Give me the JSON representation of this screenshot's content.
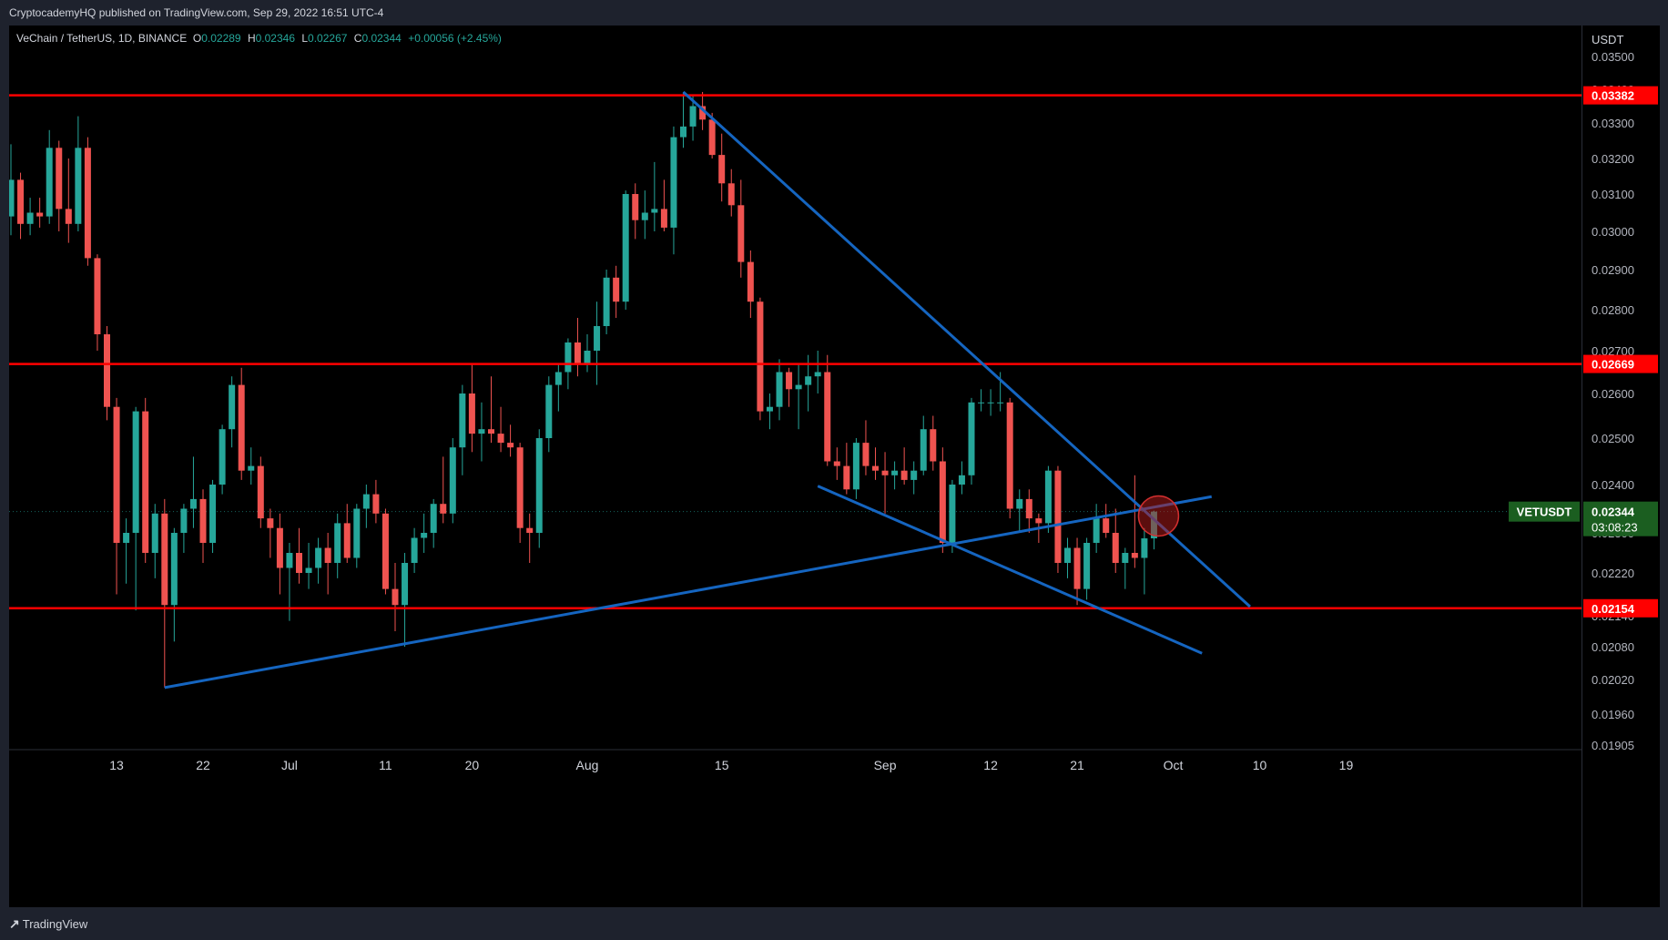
{
  "publisher": "CryptocademyHQ published on TradingView.com, Sep 29, 2022 16:51 UTC-4",
  "brand": "TradingView",
  "brand_icon": "tradingview-logo-icon",
  "symbol": {
    "name": "VeChain / TetherUS, 1D, BINANCE",
    "open_label": "O",
    "open": "0.02289",
    "high_label": "H",
    "high": "0.02346",
    "low_label": "L",
    "low": "0.02267",
    "close_label": "C",
    "close": "0.02344",
    "change": "+0.00056 (+2.45%)"
  },
  "colors": {
    "up": "#26a69a",
    "down": "#ef5350",
    "level": "#ff0000",
    "trend": "#1565c0",
    "highlight": "#b71c1c"
  },
  "chart_data": {
    "type": "candlestick",
    "currency_label": "USDT",
    "y_ticks": [
      "0.03500",
      "0.03400",
      "0.03300",
      "0.03200",
      "0.03100",
      "0.03000",
      "0.02900",
      "0.02800",
      "0.02700",
      "0.02600",
      "0.02500",
      "0.02400",
      "0.02300",
      "0.02220",
      "0.02140",
      "0.02080",
      "0.02020",
      "0.01960",
      "0.01905"
    ],
    "x_ticks": [
      {
        "label": "13",
        "date": "2022-06-13"
      },
      {
        "label": "22",
        "date": "2022-06-22"
      },
      {
        "label": "Jul",
        "date": "2022-07-01"
      },
      {
        "label": "11",
        "date": "2022-07-11"
      },
      {
        "label": "20",
        "date": "2022-07-20"
      },
      {
        "label": "Aug",
        "date": "2022-08-01"
      },
      {
        "label": "15",
        "date": "2022-08-15"
      },
      {
        "label": "Sep",
        "date": "2022-09-01"
      },
      {
        "label": "12",
        "date": "2022-09-12"
      },
      {
        "label": "21",
        "date": "2022-09-21"
      },
      {
        "label": "Oct",
        "date": "2022-10-01"
      },
      {
        "label": "10",
        "date": "2022-10-10"
      },
      {
        "label": "19",
        "date": "2022-10-19"
      }
    ],
    "x_range": [
      "2022-06-02",
      "2022-10-20"
    ],
    "horizontal_levels": [
      {
        "value": 0.03382,
        "label": "0.03382"
      },
      {
        "value": 0.02669,
        "label": "0.02669"
      },
      {
        "value": 0.02154,
        "label": "0.02154"
      }
    ],
    "current_price": {
      "symbol": "VETUSDT",
      "value": 0.02344,
      "label": "0.02344",
      "countdown": "03:08:23"
    },
    "trendlines": [
      {
        "from": {
          "date": "2022-06-18",
          "value": 0.02006
        },
        "to": {
          "date": "2022-10-05",
          "value": 0.02375
        }
      },
      {
        "from": {
          "date": "2022-08-11",
          "value": 0.03392
        },
        "to": {
          "date": "2022-10-09",
          "value": 0.02157
        }
      },
      {
        "from": {
          "date": "2022-08-25",
          "value": 0.02397
        },
        "to": {
          "date": "2022-10-04",
          "value": 0.02068
        }
      }
    ],
    "highlight_circle": {
      "date": "2022-09-29",
      "value": 0.02335
    },
    "candles": [
      {
        "d": "2022-06-02",
        "o": 0.0304,
        "h": 0.0324,
        "l": 0.0299,
        "c": 0.0314
      },
      {
        "d": "2022-06-03",
        "o": 0.0314,
        "h": 0.0316,
        "l": 0.0298,
        "c": 0.0302
      },
      {
        "d": "2022-06-04",
        "o": 0.0302,
        "h": 0.0309,
        "l": 0.0299,
        "c": 0.0305
      },
      {
        "d": "2022-06-05",
        "o": 0.0305,
        "h": 0.0309,
        "l": 0.0301,
        "c": 0.0304
      },
      {
        "d": "2022-06-06",
        "o": 0.0304,
        "h": 0.0328,
        "l": 0.0302,
        "c": 0.0323
      },
      {
        "d": "2022-06-07",
        "o": 0.0323,
        "h": 0.0325,
        "l": 0.03,
        "c": 0.0306
      },
      {
        "d": "2022-06-08",
        "o": 0.0306,
        "h": 0.032,
        "l": 0.0297,
        "c": 0.0302
      },
      {
        "d": "2022-06-09",
        "o": 0.0302,
        "h": 0.0332,
        "l": 0.03,
        "c": 0.0323
      },
      {
        "d": "2022-06-10",
        "o": 0.0323,
        "h": 0.0326,
        "l": 0.0291,
        "c": 0.0293
      },
      {
        "d": "2022-06-11",
        "o": 0.0293,
        "h": 0.0294,
        "l": 0.027,
        "c": 0.0274
      },
      {
        "d": "2022-06-12",
        "o": 0.0274,
        "h": 0.0276,
        "l": 0.0254,
        "c": 0.0257
      },
      {
        "d": "2022-06-13",
        "o": 0.0257,
        "h": 0.0259,
        "l": 0.0218,
        "c": 0.0228
      },
      {
        "d": "2022-06-14",
        "o": 0.0228,
        "h": 0.0233,
        "l": 0.022,
        "c": 0.023
      },
      {
        "d": "2022-06-15",
        "o": 0.023,
        "h": 0.0257,
        "l": 0.0215,
        "c": 0.0256
      },
      {
        "d": "2022-06-16",
        "o": 0.0256,
        "h": 0.0259,
        "l": 0.0224,
        "c": 0.0226
      },
      {
        "d": "2022-06-17",
        "o": 0.0226,
        "h": 0.0236,
        "l": 0.0221,
        "c": 0.0234
      },
      {
        "d": "2022-06-18",
        "o": 0.0234,
        "h": 0.0237,
        "l": 0.02006,
        "c": 0.0216
      },
      {
        "d": "2022-06-19",
        "o": 0.0216,
        "h": 0.0231,
        "l": 0.0209,
        "c": 0.023
      },
      {
        "d": "2022-06-20",
        "o": 0.023,
        "h": 0.0236,
        "l": 0.0226,
        "c": 0.0235
      },
      {
        "d": "2022-06-21",
        "o": 0.0235,
        "h": 0.0246,
        "l": 0.0231,
        "c": 0.0237
      },
      {
        "d": "2022-06-22",
        "o": 0.0237,
        "h": 0.0239,
        "l": 0.0224,
        "c": 0.0228
      },
      {
        "d": "2022-06-23",
        "o": 0.0228,
        "h": 0.0241,
        "l": 0.0226,
        "c": 0.024
      },
      {
        "d": "2022-06-24",
        "o": 0.024,
        "h": 0.0253,
        "l": 0.0238,
        "c": 0.0252
      },
      {
        "d": "2022-06-25",
        "o": 0.0252,
        "h": 0.0264,
        "l": 0.0248,
        "c": 0.0262
      },
      {
        "d": "2022-06-26",
        "o": 0.0262,
        "h": 0.0266,
        "l": 0.0241,
        "c": 0.0243
      },
      {
        "d": "2022-06-27",
        "o": 0.0243,
        "h": 0.0248,
        "l": 0.024,
        "c": 0.0244
      },
      {
        "d": "2022-06-28",
        "o": 0.0244,
        "h": 0.0246,
        "l": 0.0231,
        "c": 0.0233
      },
      {
        "d": "2022-06-29",
        "o": 0.0233,
        "h": 0.0235,
        "l": 0.0225,
        "c": 0.0231
      },
      {
        "d": "2022-06-30",
        "o": 0.0231,
        "h": 0.0234,
        "l": 0.0218,
        "c": 0.0223
      },
      {
        "d": "2022-07-01",
        "o": 0.0223,
        "h": 0.0228,
        "l": 0.0213,
        "c": 0.0226
      },
      {
        "d": "2022-07-02",
        "o": 0.0226,
        "h": 0.0231,
        "l": 0.022,
        "c": 0.0222
      },
      {
        "d": "2022-07-03",
        "o": 0.0222,
        "h": 0.0228,
        "l": 0.0219,
        "c": 0.0223
      },
      {
        "d": "2022-07-04",
        "o": 0.0223,
        "h": 0.0229,
        "l": 0.022,
        "c": 0.0227
      },
      {
        "d": "2022-07-05",
        "o": 0.0227,
        "h": 0.023,
        "l": 0.0218,
        "c": 0.0224
      },
      {
        "d": "2022-07-06",
        "o": 0.0224,
        "h": 0.0234,
        "l": 0.0221,
        "c": 0.0232
      },
      {
        "d": "2022-07-07",
        "o": 0.0232,
        "h": 0.0236,
        "l": 0.0224,
        "c": 0.0225
      },
      {
        "d": "2022-07-08",
        "o": 0.0225,
        "h": 0.0236,
        "l": 0.0223,
        "c": 0.0235
      },
      {
        "d": "2022-07-09",
        "o": 0.0235,
        "h": 0.024,
        "l": 0.0231,
        "c": 0.0238
      },
      {
        "d": "2022-07-10",
        "o": 0.0238,
        "h": 0.0241,
        "l": 0.0232,
        "c": 0.0234
      },
      {
        "d": "2022-07-11",
        "o": 0.0234,
        "h": 0.0235,
        "l": 0.0218,
        "c": 0.0219
      },
      {
        "d": "2022-07-12",
        "o": 0.0219,
        "h": 0.0224,
        "l": 0.0211,
        "c": 0.0216
      },
      {
        "d": "2022-07-13",
        "o": 0.0216,
        "h": 0.0226,
        "l": 0.0208,
        "c": 0.0224
      },
      {
        "d": "2022-07-14",
        "o": 0.0224,
        "h": 0.0231,
        "l": 0.0222,
        "c": 0.0229
      },
      {
        "d": "2022-07-15",
        "o": 0.0229,
        "h": 0.0234,
        "l": 0.0226,
        "c": 0.023
      },
      {
        "d": "2022-07-16",
        "o": 0.023,
        "h": 0.0237,
        "l": 0.0227,
        "c": 0.0236
      },
      {
        "d": "2022-07-17",
        "o": 0.0236,
        "h": 0.0246,
        "l": 0.0232,
        "c": 0.0234
      },
      {
        "d": "2022-07-18",
        "o": 0.0234,
        "h": 0.025,
        "l": 0.0232,
        "c": 0.0248
      },
      {
        "d": "2022-07-19",
        "o": 0.0248,
        "h": 0.0262,
        "l": 0.0242,
        "c": 0.026
      },
      {
        "d": "2022-07-20",
        "o": 0.026,
        "h": 0.0267,
        "l": 0.0247,
        "c": 0.0251
      },
      {
        "d": "2022-07-21",
        "o": 0.0251,
        "h": 0.0258,
        "l": 0.0245,
        "c": 0.0252
      },
      {
        "d": "2022-07-22",
        "o": 0.0252,
        "h": 0.0264,
        "l": 0.0249,
        "c": 0.0251
      },
      {
        "d": "2022-07-23",
        "o": 0.0251,
        "h": 0.0257,
        "l": 0.0247,
        "c": 0.0249
      },
      {
        "d": "2022-07-24",
        "o": 0.0249,
        "h": 0.0253,
        "l": 0.0246,
        "c": 0.0248
      },
      {
        "d": "2022-07-25",
        "o": 0.0248,
        "h": 0.0249,
        "l": 0.0228,
        "c": 0.0231
      },
      {
        "d": "2022-07-26",
        "o": 0.0231,
        "h": 0.0234,
        "l": 0.0224,
        "c": 0.023
      },
      {
        "d": "2022-07-27",
        "o": 0.023,
        "h": 0.0252,
        "l": 0.0227,
        "c": 0.025
      },
      {
        "d": "2022-07-28",
        "o": 0.025,
        "h": 0.0264,
        "l": 0.0247,
        "c": 0.0262
      },
      {
        "d": "2022-07-29",
        "o": 0.0262,
        "h": 0.0267,
        "l": 0.0256,
        "c": 0.0265
      },
      {
        "d": "2022-07-30",
        "o": 0.0265,
        "h": 0.0273,
        "l": 0.0261,
        "c": 0.0272
      },
      {
        "d": "2022-07-31",
        "o": 0.0272,
        "h": 0.0278,
        "l": 0.0264,
        "c": 0.0267
      },
      {
        "d": "2022-08-01",
        "o": 0.0267,
        "h": 0.0274,
        "l": 0.0265,
        "c": 0.027
      },
      {
        "d": "2022-08-02",
        "o": 0.027,
        "h": 0.0282,
        "l": 0.0262,
        "c": 0.0276
      },
      {
        "d": "2022-08-03",
        "o": 0.0276,
        "h": 0.029,
        "l": 0.0274,
        "c": 0.0288
      },
      {
        "d": "2022-08-04",
        "o": 0.0288,
        "h": 0.0291,
        "l": 0.0278,
        "c": 0.0282
      },
      {
        "d": "2022-08-05",
        "o": 0.0282,
        "h": 0.0311,
        "l": 0.028,
        "c": 0.031
      },
      {
        "d": "2022-08-06",
        "o": 0.031,
        "h": 0.0313,
        "l": 0.0298,
        "c": 0.0303
      },
      {
        "d": "2022-08-07",
        "o": 0.0303,
        "h": 0.0311,
        "l": 0.0298,
        "c": 0.0305
      },
      {
        "d": "2022-08-08",
        "o": 0.0305,
        "h": 0.0319,
        "l": 0.03,
        "c": 0.0306
      },
      {
        "d": "2022-08-09",
        "o": 0.0306,
        "h": 0.0314,
        "l": 0.03,
        "c": 0.0301
      },
      {
        "d": "2022-08-10",
        "o": 0.0301,
        "h": 0.0329,
        "l": 0.0294,
        "c": 0.0326
      },
      {
        "d": "2022-08-11",
        "o": 0.0326,
        "h": 0.03392,
        "l": 0.0323,
        "c": 0.0329
      },
      {
        "d": "2022-08-12",
        "o": 0.0329,
        "h": 0.0338,
        "l": 0.0325,
        "c": 0.0335
      },
      {
        "d": "2022-08-13",
        "o": 0.0335,
        "h": 0.03392,
        "l": 0.0328,
        "c": 0.0331
      },
      {
        "d": "2022-08-14",
        "o": 0.0331,
        "h": 0.0333,
        "l": 0.032,
        "c": 0.0321
      },
      {
        "d": "2022-08-15",
        "o": 0.0321,
        "h": 0.0327,
        "l": 0.0308,
        "c": 0.0313
      },
      {
        "d": "2022-08-16",
        "o": 0.0313,
        "h": 0.0317,
        "l": 0.0304,
        "c": 0.0307
      },
      {
        "d": "2022-08-17",
        "o": 0.0307,
        "h": 0.0314,
        "l": 0.0288,
        "c": 0.0292
      },
      {
        "d": "2022-08-18",
        "o": 0.0292,
        "h": 0.0295,
        "l": 0.0278,
        "c": 0.0282
      },
      {
        "d": "2022-08-19",
        "o": 0.0282,
        "h": 0.0283,
        "l": 0.0254,
        "c": 0.0256
      },
      {
        "d": "2022-08-20",
        "o": 0.0256,
        "h": 0.026,
        "l": 0.0252,
        "c": 0.0257
      },
      {
        "d": "2022-08-21",
        "o": 0.0257,
        "h": 0.0268,
        "l": 0.0254,
        "c": 0.0265
      },
      {
        "d": "2022-08-22",
        "o": 0.0265,
        "h": 0.0266,
        "l": 0.0257,
        "c": 0.0261
      },
      {
        "d": "2022-08-23",
        "o": 0.0261,
        "h": 0.0267,
        "l": 0.0252,
        "c": 0.0262
      },
      {
        "d": "2022-08-24",
        "o": 0.0262,
        "h": 0.0269,
        "l": 0.0256,
        "c": 0.0264
      },
      {
        "d": "2022-08-25",
        "o": 0.0264,
        "h": 0.027,
        "l": 0.026,
        "c": 0.0265
      },
      {
        "d": "2022-08-26",
        "o": 0.0265,
        "h": 0.0269,
        "l": 0.0244,
        "c": 0.0245
      },
      {
        "d": "2022-08-27",
        "o": 0.0245,
        "h": 0.0248,
        "l": 0.0241,
        "c": 0.0244
      },
      {
        "d": "2022-08-28",
        "o": 0.0244,
        "h": 0.0249,
        "l": 0.0238,
        "c": 0.0239
      },
      {
        "d": "2022-08-29",
        "o": 0.0239,
        "h": 0.025,
        "l": 0.0237,
        "c": 0.0249
      },
      {
        "d": "2022-08-30",
        "o": 0.0249,
        "h": 0.0254,
        "l": 0.0242,
        "c": 0.0244
      },
      {
        "d": "2022-08-31",
        "o": 0.0244,
        "h": 0.0248,
        "l": 0.0241,
        "c": 0.0243
      },
      {
        "d": "2022-09-01",
        "o": 0.0243,
        "h": 0.0247,
        "l": 0.0234,
        "c": 0.0242
      },
      {
        "d": "2022-09-02",
        "o": 0.0242,
        "h": 0.0245,
        "l": 0.0239,
        "c": 0.0243
      },
      {
        "d": "2022-09-03",
        "o": 0.0243,
        "h": 0.0248,
        "l": 0.024,
        "c": 0.0241
      },
      {
        "d": "2022-09-04",
        "o": 0.0241,
        "h": 0.0245,
        "l": 0.0238,
        "c": 0.0243
      },
      {
        "d": "2022-09-05",
        "o": 0.0243,
        "h": 0.0255,
        "l": 0.0242,
        "c": 0.0252
      },
      {
        "d": "2022-09-06",
        "o": 0.0252,
        "h": 0.0255,
        "l": 0.0243,
        "c": 0.0245
      },
      {
        "d": "2022-09-07",
        "o": 0.0245,
        "h": 0.0248,
        "l": 0.0226,
        "c": 0.0228
      },
      {
        "d": "2022-09-08",
        "o": 0.0228,
        "h": 0.0241,
        "l": 0.0226,
        "c": 0.024
      },
      {
        "d": "2022-09-09",
        "o": 0.024,
        "h": 0.0245,
        "l": 0.0238,
        "c": 0.0242
      },
      {
        "d": "2022-09-10",
        "o": 0.0242,
        "h": 0.0259,
        "l": 0.024,
        "c": 0.0258
      },
      {
        "d": "2022-09-11",
        "o": 0.0258,
        "h": 0.0261,
        "l": 0.0256,
        "c": 0.0258
      },
      {
        "d": "2022-09-12",
        "o": 0.0258,
        "h": 0.0261,
        "l": 0.0255,
        "c": 0.0258
      },
      {
        "d": "2022-09-13",
        "o": 0.0258,
        "h": 0.0265,
        "l": 0.0256,
        "c": 0.0258
      },
      {
        "d": "2022-09-14",
        "o": 0.0258,
        "h": 0.0259,
        "l": 0.0233,
        "c": 0.0235
      },
      {
        "d": "2022-09-15",
        "o": 0.0235,
        "h": 0.0239,
        "l": 0.023,
        "c": 0.0237
      },
      {
        "d": "2022-09-16",
        "o": 0.0237,
        "h": 0.0239,
        "l": 0.023,
        "c": 0.0233
      },
      {
        "d": "2022-09-17",
        "o": 0.0233,
        "h": 0.0234,
        "l": 0.0228,
        "c": 0.0232
      },
      {
        "d": "2022-09-18",
        "o": 0.0232,
        "h": 0.0244,
        "l": 0.023,
        "c": 0.0243
      },
      {
        "d": "2022-09-19",
        "o": 0.0243,
        "h": 0.0244,
        "l": 0.0222,
        "c": 0.0224
      },
      {
        "d": "2022-09-20",
        "o": 0.0224,
        "h": 0.0229,
        "l": 0.0221,
        "c": 0.0227
      },
      {
        "d": "2022-09-21",
        "o": 0.0227,
        "h": 0.0229,
        "l": 0.0216,
        "c": 0.0219
      },
      {
        "d": "2022-09-22",
        "o": 0.0219,
        "h": 0.0229,
        "l": 0.0217,
        "c": 0.0228
      },
      {
        "d": "2022-09-23",
        "o": 0.0228,
        "h": 0.0236,
        "l": 0.0226,
        "c": 0.0233
      },
      {
        "d": "2022-09-24",
        "o": 0.0233,
        "h": 0.0236,
        "l": 0.0229,
        "c": 0.023
      },
      {
        "d": "2022-09-25",
        "o": 0.023,
        "h": 0.0235,
        "l": 0.0222,
        "c": 0.0224
      },
      {
        "d": "2022-09-26",
        "o": 0.0224,
        "h": 0.0227,
        "l": 0.0219,
        "c": 0.0226
      },
      {
        "d": "2022-09-27",
        "o": 0.0226,
        "h": 0.0242,
        "l": 0.0223,
        "c": 0.0225
      },
      {
        "d": "2022-09-28",
        "o": 0.0225,
        "h": 0.0231,
        "l": 0.0218,
        "c": 0.02289
      },
      {
        "d": "2022-09-29",
        "o": 0.02289,
        "h": 0.02346,
        "l": 0.02267,
        "c": 0.02344
      }
    ]
  }
}
